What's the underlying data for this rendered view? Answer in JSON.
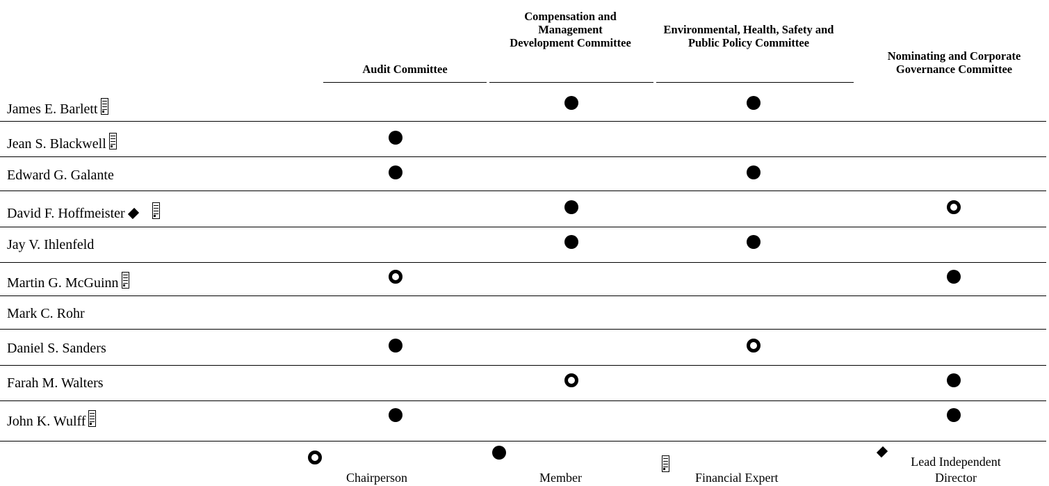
{
  "columns": [
    "Audit Committee",
    "Compensation and Management Development Committee",
    "Environmental, Health, Safety and Public Policy Committee",
    "Nominating and Corporate Governance Committee"
  ],
  "directors": [
    {
      "name": "James E. Barlett",
      "financial_expert": true,
      "lead_independent": false,
      "committees": [
        "",
        "member",
        "member",
        ""
      ]
    },
    {
      "name": "Jean S. Blackwell",
      "financial_expert": true,
      "lead_independent": false,
      "committees": [
        "member",
        "",
        "",
        ""
      ]
    },
    {
      "name": "Edward G. Galante",
      "financial_expert": false,
      "lead_independent": false,
      "committees": [
        "member",
        "",
        "member",
        ""
      ]
    },
    {
      "name": "David F. Hoffmeister",
      "financial_expert": true,
      "lead_independent": true,
      "committees": [
        "",
        "member",
        "",
        "chair"
      ]
    },
    {
      "name": "Jay V. Ihlenfeld",
      "financial_expert": false,
      "lead_independent": false,
      "committees": [
        "",
        "member",
        "member",
        ""
      ]
    },
    {
      "name": "Martin G. McGuinn",
      "financial_expert": true,
      "lead_independent": false,
      "committees": [
        "chair",
        "",
        "",
        "member"
      ]
    },
    {
      "name": "Mark C. Rohr",
      "financial_expert": false,
      "lead_independent": false,
      "committees": [
        "",
        "",
        "",
        ""
      ]
    },
    {
      "name": "Daniel S. Sanders",
      "financial_expert": false,
      "lead_independent": false,
      "committees": [
        "member",
        "",
        "chair",
        ""
      ]
    },
    {
      "name": "Farah M. Walters",
      "financial_expert": false,
      "lead_independent": false,
      "committees": [
        "",
        "chair",
        "",
        "member"
      ]
    },
    {
      "name": "John K. Wulff",
      "financial_expert": true,
      "lead_independent": false,
      "committees": [
        "member",
        "",
        "",
        "member"
      ]
    }
  ],
  "legend": {
    "chair": "Chairperson",
    "member": "Member",
    "financial_expert": "Financial Expert",
    "lead_independent": "Lead Independent Director"
  },
  "icons": {
    "chair": "open-circle-icon",
    "member": "filled-circle-icon",
    "financial_expert": "document-icon",
    "lead_independent": "diamond-icon"
  }
}
